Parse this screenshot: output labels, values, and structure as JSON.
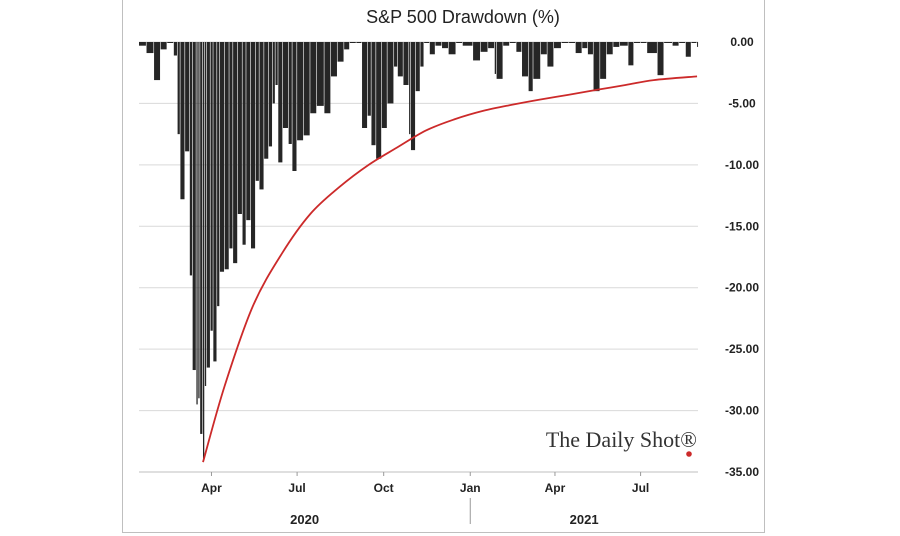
{
  "chart_data": {
    "type": "bar",
    "title": "S&P 500 Drawdown (%)",
    "xlabel": "",
    "ylabel": "",
    "ylim": [
      -35,
      0
    ],
    "yticks": [
      "0.00",
      "-5.00",
      "-10.00",
      "-15.00",
      "-20.00",
      "-25.00",
      "-30.00",
      "-35.00"
    ],
    "xticks": [
      "Apr",
      "Jul",
      "Oct",
      "Jan",
      "Apr",
      "Jul"
    ],
    "xtick_dates": [
      "2020-04-01",
      "2020-07-01",
      "2020-10-01",
      "2021-01-01",
      "2021-04-01",
      "2021-07-01"
    ],
    "year_labels": [
      "2020",
      "2021"
    ],
    "x_range": [
      "2020-01-15",
      "2021-08-31"
    ],
    "grid": true,
    "series": [
      {
        "kind": "bar",
        "color": "#262626",
        "points": [
          [
            "2020-01-15",
            -0.3
          ],
          [
            "2020-01-23",
            -0.9
          ],
          [
            "2020-01-31",
            -3.1
          ],
          [
            "2020-02-07",
            -0.6
          ],
          [
            "2020-02-14",
            0.0
          ],
          [
            "2020-02-21",
            -1.1
          ],
          [
            "2020-02-25",
            -7.5
          ],
          [
            "2020-02-28",
            -12.8
          ],
          [
            "2020-03-04",
            -8.9
          ],
          [
            "2020-03-09",
            -19.0
          ],
          [
            "2020-03-12",
            -26.7
          ],
          [
            "2020-03-16",
            -29.5
          ],
          [
            "2020-03-18",
            -29.0
          ],
          [
            "2020-03-20",
            -31.9
          ],
          [
            "2020-03-23",
            -33.9
          ],
          [
            "2020-03-25",
            -28.0
          ],
          [
            "2020-03-27",
            -26.5
          ],
          [
            "2020-03-31",
            -23.5
          ],
          [
            "2020-04-03",
            -26.0
          ],
          [
            "2020-04-07",
            -21.5
          ],
          [
            "2020-04-10",
            -18.7
          ],
          [
            "2020-04-15",
            -18.5
          ],
          [
            "2020-04-20",
            -16.8
          ],
          [
            "2020-04-24",
            -18.0
          ],
          [
            "2020-04-29",
            -14.0
          ],
          [
            "2020-05-04",
            -16.5
          ],
          [
            "2020-05-08",
            -14.5
          ],
          [
            "2020-05-13",
            -16.8
          ],
          [
            "2020-05-18",
            -11.3
          ],
          [
            "2020-05-22",
            -12.0
          ],
          [
            "2020-05-27",
            -9.5
          ],
          [
            "2020-06-01",
            -8.5
          ],
          [
            "2020-06-05",
            -5.0
          ],
          [
            "2020-06-08",
            -3.5
          ],
          [
            "2020-06-11",
            -9.8
          ],
          [
            "2020-06-16",
            -7.0
          ],
          [
            "2020-06-22",
            -8.3
          ],
          [
            "2020-06-26",
            -10.5
          ],
          [
            "2020-07-01",
            -8.0
          ],
          [
            "2020-07-08",
            -7.6
          ],
          [
            "2020-07-15",
            -5.8
          ],
          [
            "2020-07-22",
            -5.2
          ],
          [
            "2020-07-30",
            -5.8
          ],
          [
            "2020-08-06",
            -2.8
          ],
          [
            "2020-08-13",
            -1.6
          ],
          [
            "2020-08-20",
            -0.6
          ],
          [
            "2020-08-26",
            0.0
          ],
          [
            "2020-09-02",
            0.0
          ],
          [
            "2020-09-08",
            -7.0
          ],
          [
            "2020-09-14",
            -6.0
          ],
          [
            "2020-09-18",
            -8.4
          ],
          [
            "2020-09-23",
            -9.5
          ],
          [
            "2020-09-29",
            -7.0
          ],
          [
            "2020-10-05",
            -5.0
          ],
          [
            "2020-10-12",
            -2.0
          ],
          [
            "2020-10-16",
            -2.8
          ],
          [
            "2020-10-22",
            -3.5
          ],
          [
            "2020-10-28",
            -7.5
          ],
          [
            "2020-10-30",
            -8.8
          ],
          [
            "2020-11-04",
            -4.0
          ],
          [
            "2020-11-09",
            -2.0
          ],
          [
            "2020-11-13",
            0.0
          ],
          [
            "2020-11-19",
            -1.0
          ],
          [
            "2020-11-25",
            -0.3
          ],
          [
            "2020-12-02",
            -0.5
          ],
          [
            "2020-12-09",
            -1.0
          ],
          [
            "2020-12-17",
            0.0
          ],
          [
            "2020-12-24",
            -0.3
          ],
          [
            "2021-01-04",
            -1.5
          ],
          [
            "2021-01-12",
            -0.8
          ],
          [
            "2021-01-20",
            -0.5
          ],
          [
            "2021-01-27",
            -2.6
          ],
          [
            "2021-01-29",
            -3.0
          ],
          [
            "2021-02-05",
            -0.3
          ],
          [
            "2021-02-12",
            0.0
          ],
          [
            "2021-02-19",
            -0.8
          ],
          [
            "2021-02-25",
            -2.8
          ],
          [
            "2021-03-04",
            -4.0
          ],
          [
            "2021-03-09",
            -3.0
          ],
          [
            "2021-03-17",
            -1.0
          ],
          [
            "2021-03-24",
            -2.0
          ],
          [
            "2021-03-31",
            -0.5
          ],
          [
            "2021-04-08",
            0.0
          ],
          [
            "2021-04-16",
            0.0
          ],
          [
            "2021-04-23",
            -0.9
          ],
          [
            "2021-04-30",
            -0.5
          ],
          [
            "2021-05-06",
            -1.0
          ],
          [
            "2021-05-12",
            -4.0
          ],
          [
            "2021-05-19",
            -3.0
          ],
          [
            "2021-05-26",
            -1.0
          ],
          [
            "2021-06-02",
            -0.4
          ],
          [
            "2021-06-09",
            -0.3
          ],
          [
            "2021-06-18",
            -1.9
          ],
          [
            "2021-06-24",
            0.0
          ],
          [
            "2021-07-01",
            0.0
          ],
          [
            "2021-07-08",
            -0.9
          ],
          [
            "2021-07-19",
            -2.7
          ],
          [
            "2021-07-26",
            0.0
          ],
          [
            "2021-08-04",
            -0.3
          ],
          [
            "2021-08-11",
            0.0
          ],
          [
            "2021-08-18",
            -1.2
          ],
          [
            "2021-08-24",
            0.0
          ],
          [
            "2021-08-30",
            -0.4
          ]
        ]
      },
      {
        "kind": "line",
        "color": "#cc2a2a",
        "points": [
          [
            "2020-03-23",
            -34.2
          ],
          [
            "2020-04-15",
            -28.0
          ],
          [
            "2020-05-15",
            -21.5
          ],
          [
            "2020-06-15",
            -17.2
          ],
          [
            "2020-07-15",
            -14.0
          ],
          [
            "2020-08-15",
            -11.8
          ],
          [
            "2020-09-15",
            -10.0
          ],
          [
            "2020-10-15",
            -8.6
          ],
          [
            "2020-11-15",
            -7.2
          ],
          [
            "2020-12-15",
            -6.3
          ],
          [
            "2021-01-15",
            -5.6
          ],
          [
            "2021-02-15",
            -5.1
          ],
          [
            "2021-03-15",
            -4.7
          ],
          [
            "2021-04-15",
            -4.3
          ],
          [
            "2021-05-15",
            -3.9
          ],
          [
            "2021-06-15",
            -3.5
          ],
          [
            "2021-07-15",
            -3.1
          ],
          [
            "2021-08-30",
            -2.8
          ]
        ]
      }
    ],
    "watermark": "The Daily Shot®",
    "accent_color": "#cc2a2a"
  }
}
